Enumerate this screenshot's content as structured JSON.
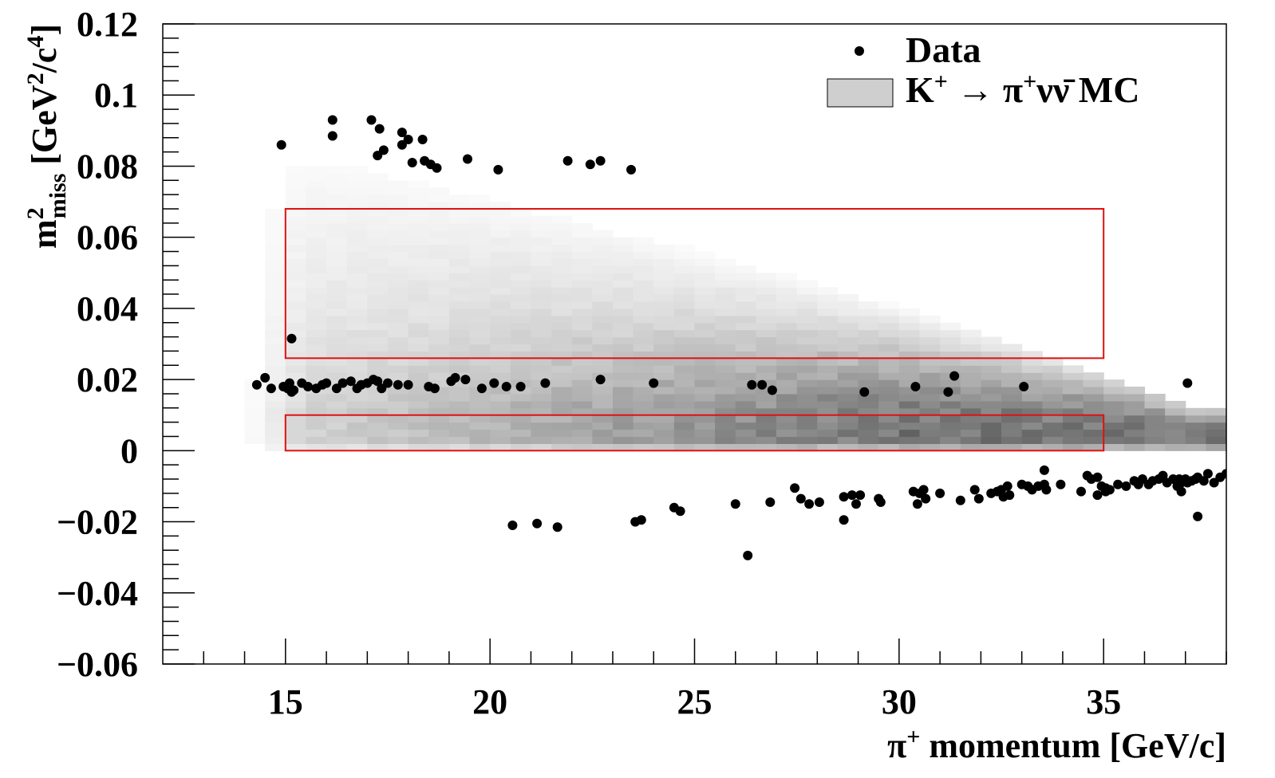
{
  "chart_data": {
    "type": "scatter",
    "xlabel_parts": [
      "π",
      "+",
      " momentum [GeV/c]"
    ],
    "ylabel_parts": [
      "m",
      "2",
      "miss",
      " [GeV",
      "2",
      "/c",
      "4",
      "]"
    ],
    "xlim": [
      12,
      38
    ],
    "ylim": [
      -0.06,
      0.12
    ],
    "x_ticks": [
      15,
      20,
      25,
      30,
      35
    ],
    "x_tick_labels": [
      "15",
      "20",
      "25",
      "30",
      "35"
    ],
    "y_ticks": [
      -0.06,
      -0.04,
      -0.02,
      0,
      0.02,
      0.04,
      0.06,
      0.08,
      0.1,
      0.12
    ],
    "y_tick_labels": [
      "−0.06",
      "−0.04",
      "−0.02",
      "0",
      "0.02",
      "0.04",
      "0.06",
      "0.08",
      "0.1",
      "0.12"
    ],
    "grid": false,
    "legend_position": "top-right",
    "legend": [
      {
        "name_parts": [
          "Data"
        ],
        "marker": "dot"
      },
      {
        "name_parts": [
          "K",
          "+",
          "  →  π",
          "+",
          "νν̄ MC"
        ],
        "marker": "box"
      }
    ],
    "colors": {
      "data": "#000000",
      "mc": "#7a7a7a",
      "signal_region": "#e01010"
    },
    "signal_regions": [
      {
        "x": [
          15,
          35
        ],
        "y": [
          0.026,
          0.068
        ]
      },
      {
        "x": [
          15,
          35
        ],
        "y": [
          0,
          0.01
        ]
      }
    ],
    "mc_density": {
      "x_start": 14,
      "x_end": 38,
      "description_free_band": true
    },
    "series": [
      {
        "name": "Data",
        "points": [
          [
            14.9,
            0.086
          ],
          [
            16.15,
            0.093
          ],
          [
            16.15,
            0.0885
          ],
          [
            17.1,
            0.093
          ],
          [
            17.3,
            0.0905
          ],
          [
            17.25,
            0.083
          ],
          [
            17.4,
            0.0845
          ],
          [
            17.85,
            0.0895
          ],
          [
            18.0,
            0.0875
          ],
          [
            18.35,
            0.0875
          ],
          [
            17.85,
            0.086
          ],
          [
            18.1,
            0.081
          ],
          [
            18.4,
            0.0815
          ],
          [
            18.55,
            0.0805
          ],
          [
            18.7,
            0.0795
          ],
          [
            19.45,
            0.082
          ],
          [
            20.2,
            0.079
          ],
          [
            21.9,
            0.0815
          ],
          [
            22.45,
            0.0805
          ],
          [
            22.7,
            0.0815
          ],
          [
            23.45,
            0.079
          ],
          [
            15.15,
            0.0315
          ],
          [
            14.3,
            0.0185
          ],
          [
            14.5,
            0.0205
          ],
          [
            14.65,
            0.0175
          ],
          [
            14.95,
            0.018
          ],
          [
            15.05,
            0.0175
          ],
          [
            15.15,
            0.0165
          ],
          [
            15.1,
            0.019
          ],
          [
            15.2,
            0.017
          ],
          [
            15.4,
            0.019
          ],
          [
            15.55,
            0.018
          ],
          [
            15.75,
            0.0175
          ],
          [
            15.9,
            0.0185
          ],
          [
            16.0,
            0.019
          ],
          [
            16.25,
            0.0175
          ],
          [
            16.4,
            0.019
          ],
          [
            16.6,
            0.0195
          ],
          [
            16.75,
            0.0175
          ],
          [
            16.85,
            0.0185
          ],
          [
            17.0,
            0.019
          ],
          [
            17.15,
            0.02
          ],
          [
            17.25,
            0.0195
          ],
          [
            17.35,
            0.0175
          ],
          [
            17.5,
            0.019
          ],
          [
            17.75,
            0.0185
          ],
          [
            18.0,
            0.0185
          ],
          [
            18.5,
            0.018
          ],
          [
            18.65,
            0.0175
          ],
          [
            19.05,
            0.0195
          ],
          [
            19.15,
            0.0205
          ],
          [
            19.4,
            0.02
          ],
          [
            19.8,
            0.0175
          ],
          [
            20.1,
            0.019
          ],
          [
            20.4,
            0.018
          ],
          [
            20.75,
            0.018
          ],
          [
            21.35,
            0.019
          ],
          [
            22.7,
            0.02
          ],
          [
            24.0,
            0.019
          ],
          [
            26.4,
            0.0185
          ],
          [
            26.65,
            0.0185
          ],
          [
            26.9,
            0.017
          ],
          [
            29.15,
            0.0165
          ],
          [
            30.4,
            0.018
          ],
          [
            31.2,
            0.0165
          ],
          [
            31.35,
            0.021
          ],
          [
            33.05,
            0.018
          ],
          [
            37.05,
            0.019
          ],
          [
            20.55,
            -0.021
          ],
          [
            21.15,
            -0.0205
          ],
          [
            21.65,
            -0.0215
          ],
          [
            23.55,
            -0.02
          ],
          [
            23.7,
            -0.0195
          ],
          [
            24.5,
            -0.016
          ],
          [
            24.65,
            -0.017
          ],
          [
            26.0,
            -0.015
          ],
          [
            26.3,
            -0.0295
          ],
          [
            26.85,
            -0.0145
          ],
          [
            27.45,
            -0.0105
          ],
          [
            27.6,
            -0.0135
          ],
          [
            27.8,
            -0.015
          ],
          [
            28.05,
            -0.0145
          ],
          [
            28.65,
            -0.013
          ],
          [
            28.85,
            -0.0125
          ],
          [
            28.95,
            -0.015
          ],
          [
            29.05,
            -0.0125
          ],
          [
            29.5,
            -0.0135
          ],
          [
            29.55,
            -0.0145
          ],
          [
            28.65,
            -0.0195
          ],
          [
            30.35,
            -0.0115
          ],
          [
            30.5,
            -0.012
          ],
          [
            30.6,
            -0.011
          ],
          [
            30.45,
            -0.015
          ],
          [
            30.65,
            -0.0135
          ],
          [
            31.0,
            -0.012
          ],
          [
            31.5,
            -0.014
          ],
          [
            31.85,
            -0.011
          ],
          [
            31.95,
            -0.0135
          ],
          [
            32.25,
            -0.012
          ],
          [
            32.4,
            -0.0115
          ],
          [
            32.5,
            -0.011
          ],
          [
            32.55,
            -0.013
          ],
          [
            32.65,
            -0.01
          ],
          [
            32.7,
            -0.0125
          ],
          [
            33.0,
            -0.0095
          ],
          [
            33.15,
            -0.01
          ],
          [
            33.25,
            -0.011
          ],
          [
            33.4,
            -0.01
          ],
          [
            33.55,
            -0.0095
          ],
          [
            33.6,
            -0.011
          ],
          [
            33.55,
            -0.0055
          ],
          [
            33.95,
            -0.0095
          ],
          [
            34.45,
            -0.0115
          ],
          [
            34.6,
            -0.007
          ],
          [
            34.7,
            -0.008
          ],
          [
            34.85,
            -0.0075
          ],
          [
            34.85,
            -0.0125
          ],
          [
            34.95,
            -0.01
          ],
          [
            35.05,
            -0.0115
          ],
          [
            35.15,
            -0.011
          ],
          [
            35.35,
            -0.0095
          ],
          [
            35.55,
            -0.01
          ],
          [
            35.75,
            -0.0085
          ],
          [
            35.85,
            -0.0095
          ],
          [
            35.95,
            -0.008
          ],
          [
            36.1,
            -0.0095
          ],
          [
            36.2,
            -0.0085
          ],
          [
            36.35,
            -0.008
          ],
          [
            36.45,
            -0.007
          ],
          [
            36.55,
            -0.009
          ],
          [
            36.7,
            -0.008
          ],
          [
            36.8,
            -0.01
          ],
          [
            36.85,
            -0.008
          ],
          [
            36.9,
            -0.009
          ],
          [
            36.95,
            -0.0085
          ],
          [
            37.0,
            -0.008
          ],
          [
            37.05,
            -0.009
          ],
          [
            37.15,
            -0.0085
          ],
          [
            37.25,
            -0.008
          ],
          [
            37.3,
            -0.0075
          ],
          [
            37.45,
            -0.0085
          ],
          [
            37.55,
            -0.0065
          ],
          [
            37.7,
            -0.009
          ],
          [
            37.85,
            -0.0075
          ],
          [
            38.0,
            -0.0065
          ],
          [
            36.9,
            -0.0115
          ],
          [
            37.3,
            -0.0185
          ],
          [
            35.05,
            -0.0105
          ]
        ]
      }
    ]
  }
}
